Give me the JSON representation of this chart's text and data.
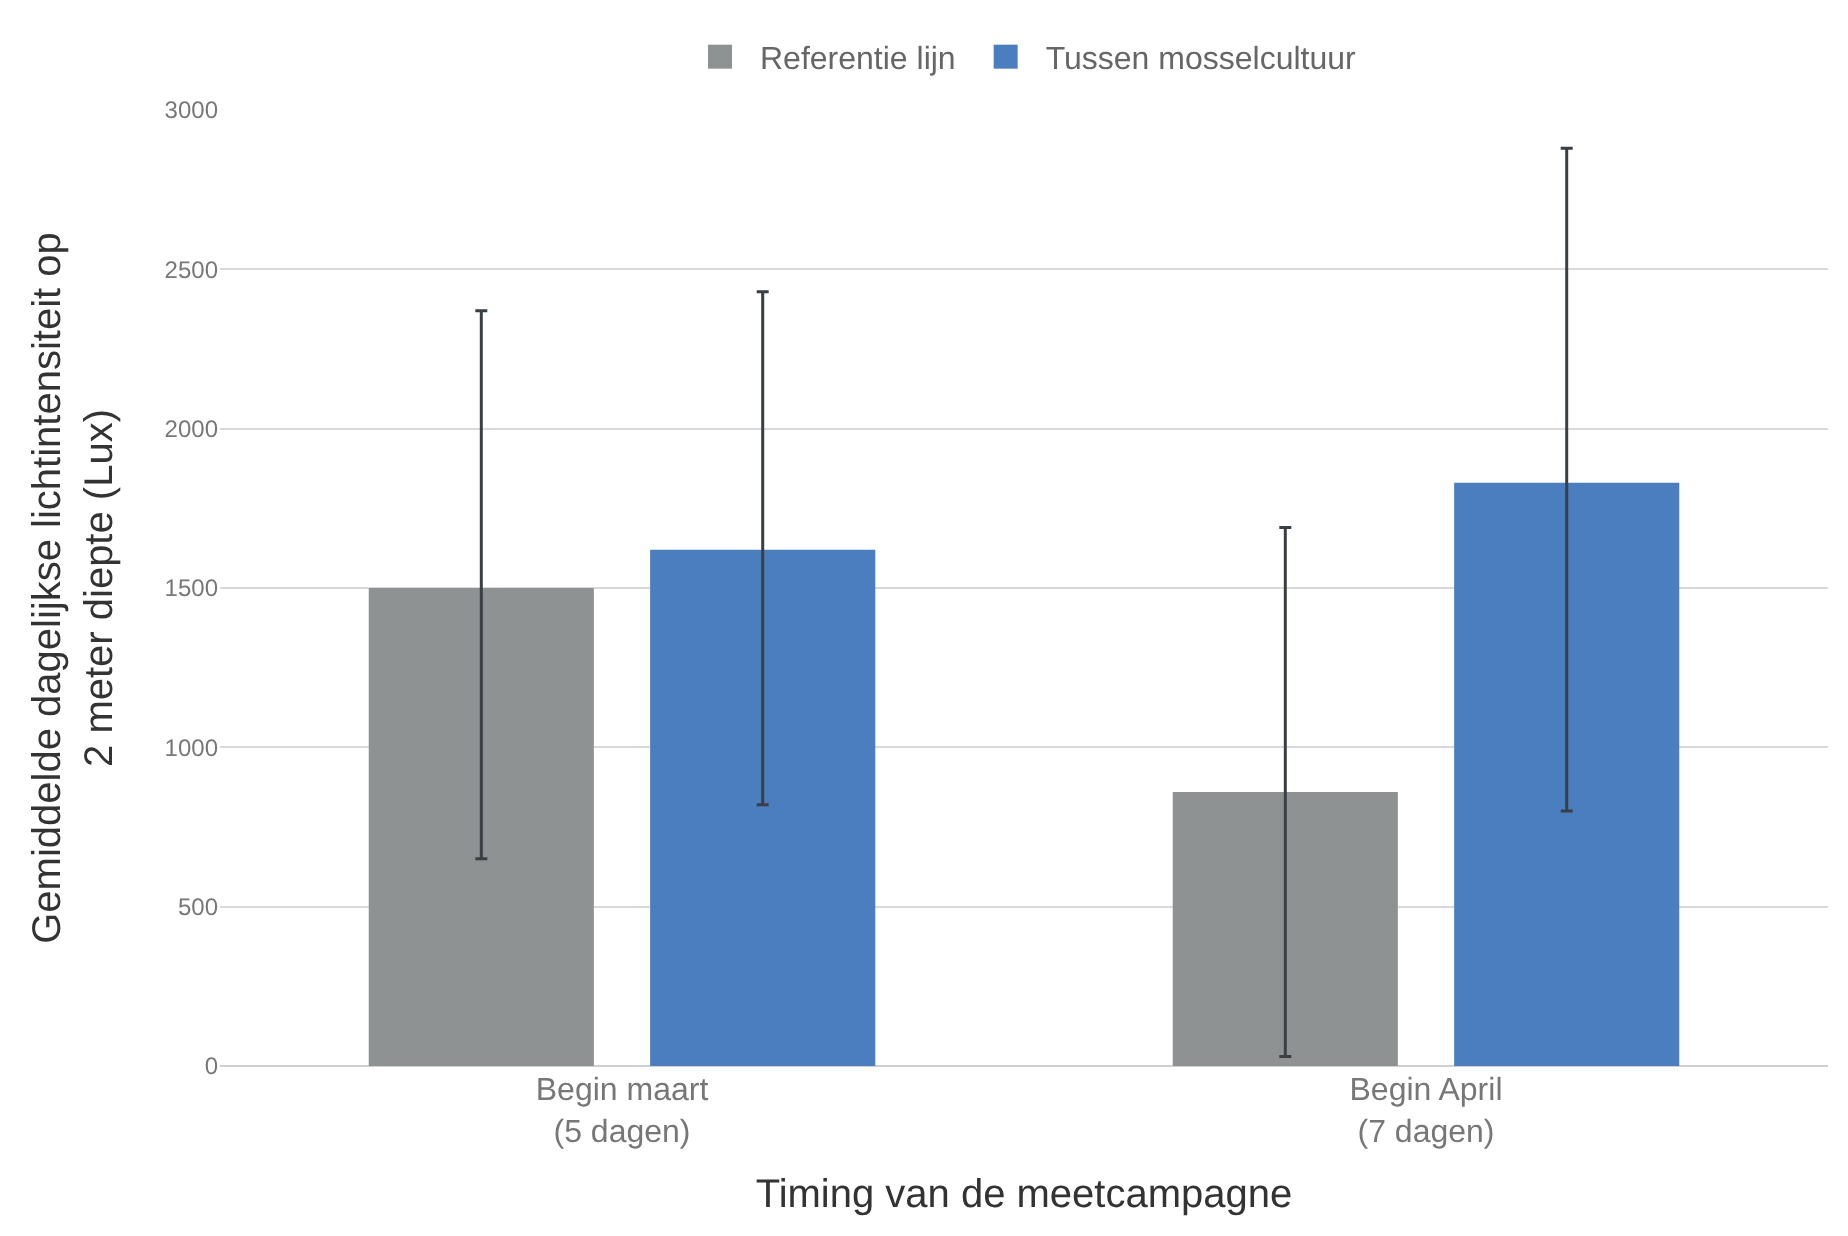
{
  "chart_data": {
    "type": "bar",
    "xlabel": "Timing van de meetcampagne",
    "ylabel": "Gemiddelde dagelijkse lichtintensiteit op\n2 meter diepte (Lux)",
    "categories": [
      "Begin maart\n(5 dagen)",
      "Begin April\n(7 dagen)"
    ],
    "series": [
      {
        "name": "Referentie lijn",
        "color": "#8f9293",
        "values": [
          1500,
          860
        ],
        "errors": [
          [
            650,
            2370
          ],
          [
            30,
            1690
          ]
        ]
      },
      {
        "name": "Tussen mosselcultuur",
        "color": "#4a7ebf",
        "values": [
          1620,
          1830
        ],
        "errors": [
          [
            820,
            2430
          ],
          [
            800,
            2880
          ]
        ]
      }
    ],
    "ylim": [
      0,
      3000
    ],
    "yticks": [
      0,
      500,
      1000,
      1500,
      2000,
      2500,
      3000
    ],
    "grid": "y",
    "legend": "top"
  }
}
